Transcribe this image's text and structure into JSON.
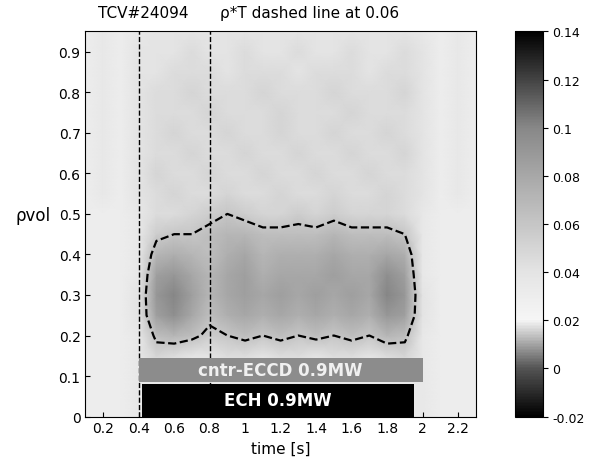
{
  "chart_data": {
    "type": "heatmap",
    "title": "TCV#24094",
    "subtitle": "ρ*T dashed line at 0.06",
    "x_label": "time [s]",
    "y_label": "ρvol",
    "contour_level": 0.06,
    "vlines": [
      0.4,
      0.8
    ],
    "annotations": [
      {
        "text": "cntr-ECCD 0.9MW",
        "start": 0.4,
        "end": 2.0,
        "color": "#8c8c8c"
      },
      {
        "text": "ECH 0.9MW",
        "start": 0.42,
        "end": 1.95,
        "color": "#000000"
      }
    ],
    "x": [
      0.1,
      0.2,
      0.3,
      0.4,
      0.5,
      0.6,
      0.7,
      0.8,
      0.9,
      1.0,
      1.1,
      1.2,
      1.3,
      1.4,
      1.5,
      1.6,
      1.7,
      1.8,
      1.9,
      2.0,
      2.1,
      2.2,
      2.3
    ],
    "y": [
      0.0,
      0.05,
      0.1,
      0.15,
      0.2,
      0.25,
      0.3,
      0.35,
      0.4,
      0.45,
      0.5,
      0.55,
      0.6,
      0.65,
      0.7,
      0.75,
      0.8,
      0.85,
      0.9,
      0.95
    ],
    "z": [
      [
        0.03,
        0.03,
        0.03,
        0.035,
        0.03,
        0.03,
        0.035,
        0.03,
        0.03,
        0.03,
        0.035,
        0.03,
        0.03,
        0.03,
        0.035,
        0.03,
        0.03,
        0.03,
        0.035,
        0.035,
        0.03,
        0.03,
        0.03
      ],
      [
        0.03,
        0.03,
        0.03,
        0.035,
        0.035,
        0.03,
        0.03,
        0.035,
        0.03,
        0.03,
        0.03,
        0.035,
        0.03,
        0.03,
        0.03,
        0.035,
        0.03,
        0.03,
        0.035,
        0.035,
        0.03,
        0.03,
        0.03
      ],
      [
        0.03,
        0.03,
        0.03,
        0.035,
        0.035,
        0.035,
        0.035,
        0.035,
        0.035,
        0.035,
        0.035,
        0.035,
        0.035,
        0.035,
        0.035,
        0.035,
        0.035,
        0.035,
        0.035,
        0.035,
        0.03,
        0.03,
        0.03
      ],
      [
        0.03,
        0.03,
        0.03,
        0.035,
        0.05,
        0.045,
        0.04,
        0.04,
        0.045,
        0.045,
        0.04,
        0.045,
        0.045,
        0.04,
        0.045,
        0.045,
        0.04,
        0.045,
        0.05,
        0.035,
        0.03,
        0.03,
        0.03
      ],
      [
        0.03,
        0.03,
        0.03,
        0.035,
        0.065,
        0.07,
        0.065,
        0.055,
        0.06,
        0.065,
        0.06,
        0.065,
        0.06,
        0.065,
        0.06,
        0.065,
        0.06,
        0.07,
        0.065,
        0.035,
        0.03,
        0.03,
        0.03
      ],
      [
        0.03,
        0.03,
        0.03,
        0.04,
        0.085,
        0.095,
        0.08,
        0.065,
        0.075,
        0.08,
        0.075,
        0.08,
        0.075,
        0.08,
        0.075,
        0.08,
        0.075,
        0.09,
        0.085,
        0.04,
        0.03,
        0.03,
        0.03
      ],
      [
        0.03,
        0.03,
        0.03,
        0.04,
        0.09,
        0.1,
        0.085,
        0.07,
        0.08,
        0.085,
        0.08,
        0.085,
        0.08,
        0.085,
        0.08,
        0.085,
        0.08,
        0.1,
        0.09,
        0.04,
        0.03,
        0.03,
        0.03
      ],
      [
        0.03,
        0.03,
        0.03,
        0.035,
        0.085,
        0.09,
        0.08,
        0.07,
        0.08,
        0.085,
        0.075,
        0.08,
        0.08,
        0.08,
        0.085,
        0.08,
        0.08,
        0.095,
        0.085,
        0.035,
        0.03,
        0.03,
        0.03
      ],
      [
        0.03,
        0.03,
        0.03,
        0.035,
        0.07,
        0.075,
        0.07,
        0.065,
        0.075,
        0.08,
        0.07,
        0.075,
        0.075,
        0.075,
        0.08,
        0.075,
        0.075,
        0.08,
        0.075,
        0.035,
        0.03,
        0.03,
        0.03
      ],
      [
        0.03,
        0.03,
        0.03,
        0.035,
        0.055,
        0.06,
        0.06,
        0.065,
        0.07,
        0.07,
        0.065,
        0.065,
        0.065,
        0.065,
        0.07,
        0.065,
        0.065,
        0.065,
        0.06,
        0.035,
        0.03,
        0.03,
        0.03
      ],
      [
        0.03,
        0.03,
        0.03,
        0.035,
        0.045,
        0.045,
        0.05,
        0.055,
        0.06,
        0.055,
        0.05,
        0.05,
        0.055,
        0.05,
        0.055,
        0.05,
        0.05,
        0.05,
        0.045,
        0.035,
        0.03,
        0.03,
        0.03
      ],
      [
        0.03,
        0.035,
        0.03,
        0.04,
        0.045,
        0.05,
        0.045,
        0.045,
        0.05,
        0.045,
        0.045,
        0.05,
        0.045,
        0.045,
        0.05,
        0.045,
        0.045,
        0.05,
        0.045,
        0.04,
        0.03,
        0.035,
        0.03
      ],
      [
        0.03,
        0.035,
        0.03,
        0.04,
        0.05,
        0.045,
        0.045,
        0.05,
        0.045,
        0.045,
        0.05,
        0.045,
        0.045,
        0.05,
        0.045,
        0.045,
        0.05,
        0.045,
        0.045,
        0.04,
        0.03,
        0.035,
        0.03
      ],
      [
        0.03,
        0.035,
        0.03,
        0.04,
        0.045,
        0.045,
        0.05,
        0.045,
        0.045,
        0.05,
        0.045,
        0.045,
        0.05,
        0.045,
        0.045,
        0.05,
        0.045,
        0.045,
        0.05,
        0.04,
        0.03,
        0.035,
        0.03
      ],
      [
        0.03,
        0.035,
        0.03,
        0.04,
        0.045,
        0.05,
        0.045,
        0.045,
        0.05,
        0.045,
        0.045,
        0.05,
        0.045,
        0.045,
        0.05,
        0.045,
        0.045,
        0.05,
        0.045,
        0.04,
        0.03,
        0.035,
        0.03
      ],
      [
        0.03,
        0.035,
        0.03,
        0.04,
        0.045,
        0.045,
        0.045,
        0.05,
        0.045,
        0.045,
        0.045,
        0.05,
        0.045,
        0.045,
        0.045,
        0.05,
        0.045,
        0.045,
        0.045,
        0.04,
        0.03,
        0.035,
        0.03
      ],
      [
        0.03,
        0.035,
        0.03,
        0.04,
        0.045,
        0.045,
        0.05,
        0.045,
        0.045,
        0.045,
        0.05,
        0.045,
        0.045,
        0.045,
        0.05,
        0.045,
        0.045,
        0.045,
        0.05,
        0.04,
        0.03,
        0.035,
        0.03
      ],
      [
        0.03,
        0.035,
        0.03,
        0.04,
        0.04,
        0.045,
        0.045,
        0.045,
        0.04,
        0.045,
        0.045,
        0.045,
        0.04,
        0.045,
        0.045,
        0.045,
        0.04,
        0.045,
        0.045,
        0.04,
        0.03,
        0.035,
        0.03
      ],
      [
        0.03,
        0.035,
        0.03,
        0.04,
        0.04,
        0.04,
        0.045,
        0.04,
        0.04,
        0.045,
        0.04,
        0.04,
        0.045,
        0.04,
        0.04,
        0.045,
        0.04,
        0.04,
        0.045,
        0.04,
        0.03,
        0.035,
        0.03
      ],
      [
        0.03,
        0.035,
        0.03,
        0.035,
        0.04,
        0.04,
        0.04,
        0.04,
        0.04,
        0.04,
        0.04,
        0.04,
        0.04,
        0.04,
        0.04,
        0.04,
        0.04,
        0.04,
        0.04,
        0.035,
        0.03,
        0.035,
        0.03
      ]
    ],
    "xlim": [
      0.1,
      2.3
    ],
    "ylim": [
      0,
      0.95
    ],
    "xticks": [
      0.2,
      0.4,
      0.6,
      0.8,
      1,
      1.2,
      1.4,
      1.6,
      1.8,
      2,
      2.2
    ],
    "yticks": [
      0,
      0.1,
      0.2,
      0.3,
      0.4,
      0.5,
      0.6,
      0.7,
      0.8,
      0.9
    ],
    "colorbar_lim": [
      -0.02,
      0.14
    ],
    "colorbar_ticks": [
      -0.02,
      0,
      0.02,
      0.04,
      0.06,
      0.08,
      0.1,
      0.12,
      0.14
    ]
  }
}
